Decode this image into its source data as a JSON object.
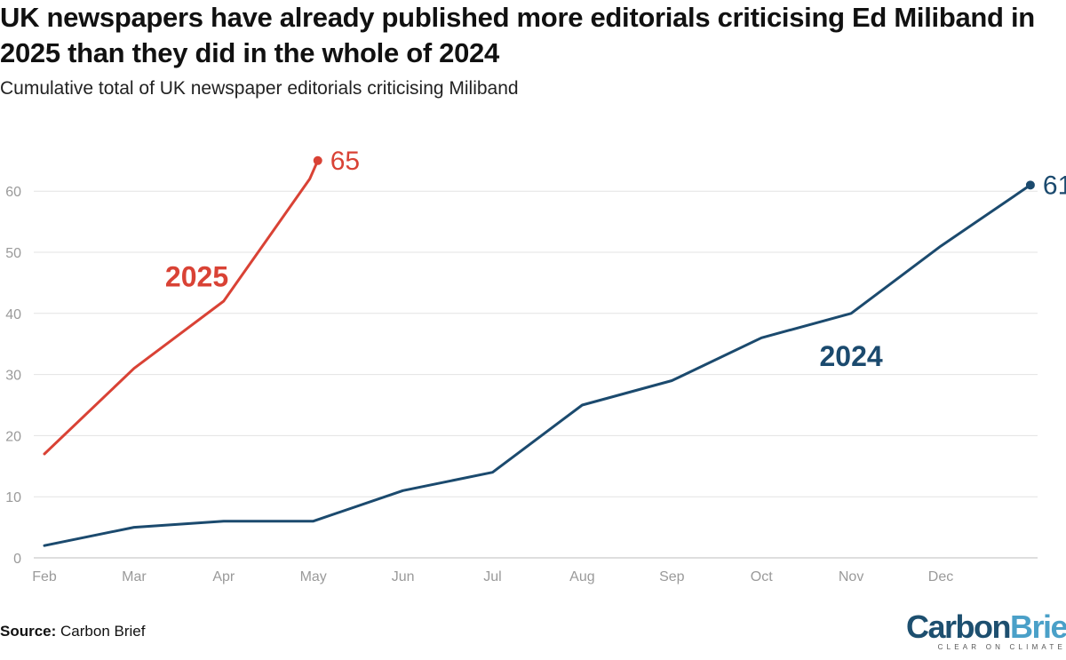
{
  "title": "UK newspapers have already published more editorials criticising Ed Miliband in 2025 than they did in the whole of 2024",
  "subtitle": "Cumulative total of UK newspaper editorials criticising Miliband",
  "source_label": "Source:",
  "source_text": "Carbon Brief",
  "logo": {
    "word_carbon": "Carbon",
    "word_brief": "Brief",
    "tagline": "CLEAR ON CLIMATE"
  },
  "chart_data": {
    "type": "line",
    "title": "UK newspapers have already published more editorials criticising Ed Miliband in 2025 than they did in the whole of 2024",
    "subtitle": "Cumulative total of UK newspaper editorials criticising Miliband",
    "xlabel": "",
    "ylabel": "",
    "categories": [
      "Feb",
      "Mar",
      "Apr",
      "May",
      "Jun",
      "Jul",
      "Aug",
      "Sep",
      "Oct",
      "Nov",
      "Dec"
    ],
    "ylim": [
      0,
      65
    ],
    "yticks": [
      0,
      10,
      20,
      30,
      40,
      50,
      60
    ],
    "grid": true,
    "legend": "none",
    "series": [
      {
        "name": "2025",
        "color": "#d94235",
        "points": [
          {
            "x": 0,
            "y": 17
          },
          {
            "x": 1,
            "y": 31
          },
          {
            "x": 2,
            "y": 42
          },
          {
            "x": 2.96,
            "y": 62
          },
          {
            "x": 3.05,
            "y": 65
          }
        ],
        "end_label": "65",
        "label_at": {
          "x": 1.7,
          "y": 46
        }
      },
      {
        "name": "2024",
        "color": "#1b4a6e",
        "points": [
          {
            "x": 0,
            "y": 2
          },
          {
            "x": 1,
            "y": 5
          },
          {
            "x": 2,
            "y": 6
          },
          {
            "x": 3,
            "y": 6
          },
          {
            "x": 4,
            "y": 11
          },
          {
            "x": 5,
            "y": 14
          },
          {
            "x": 6,
            "y": 25
          },
          {
            "x": 7,
            "y": 29
          },
          {
            "x": 8,
            "y": 36
          },
          {
            "x": 9,
            "y": 40
          },
          {
            "x": 10,
            "y": 51
          },
          {
            "x": 11,
            "y": 61
          }
        ],
        "end_label": "61",
        "label_at": {
          "x": 9,
          "y": 33
        }
      }
    ]
  }
}
